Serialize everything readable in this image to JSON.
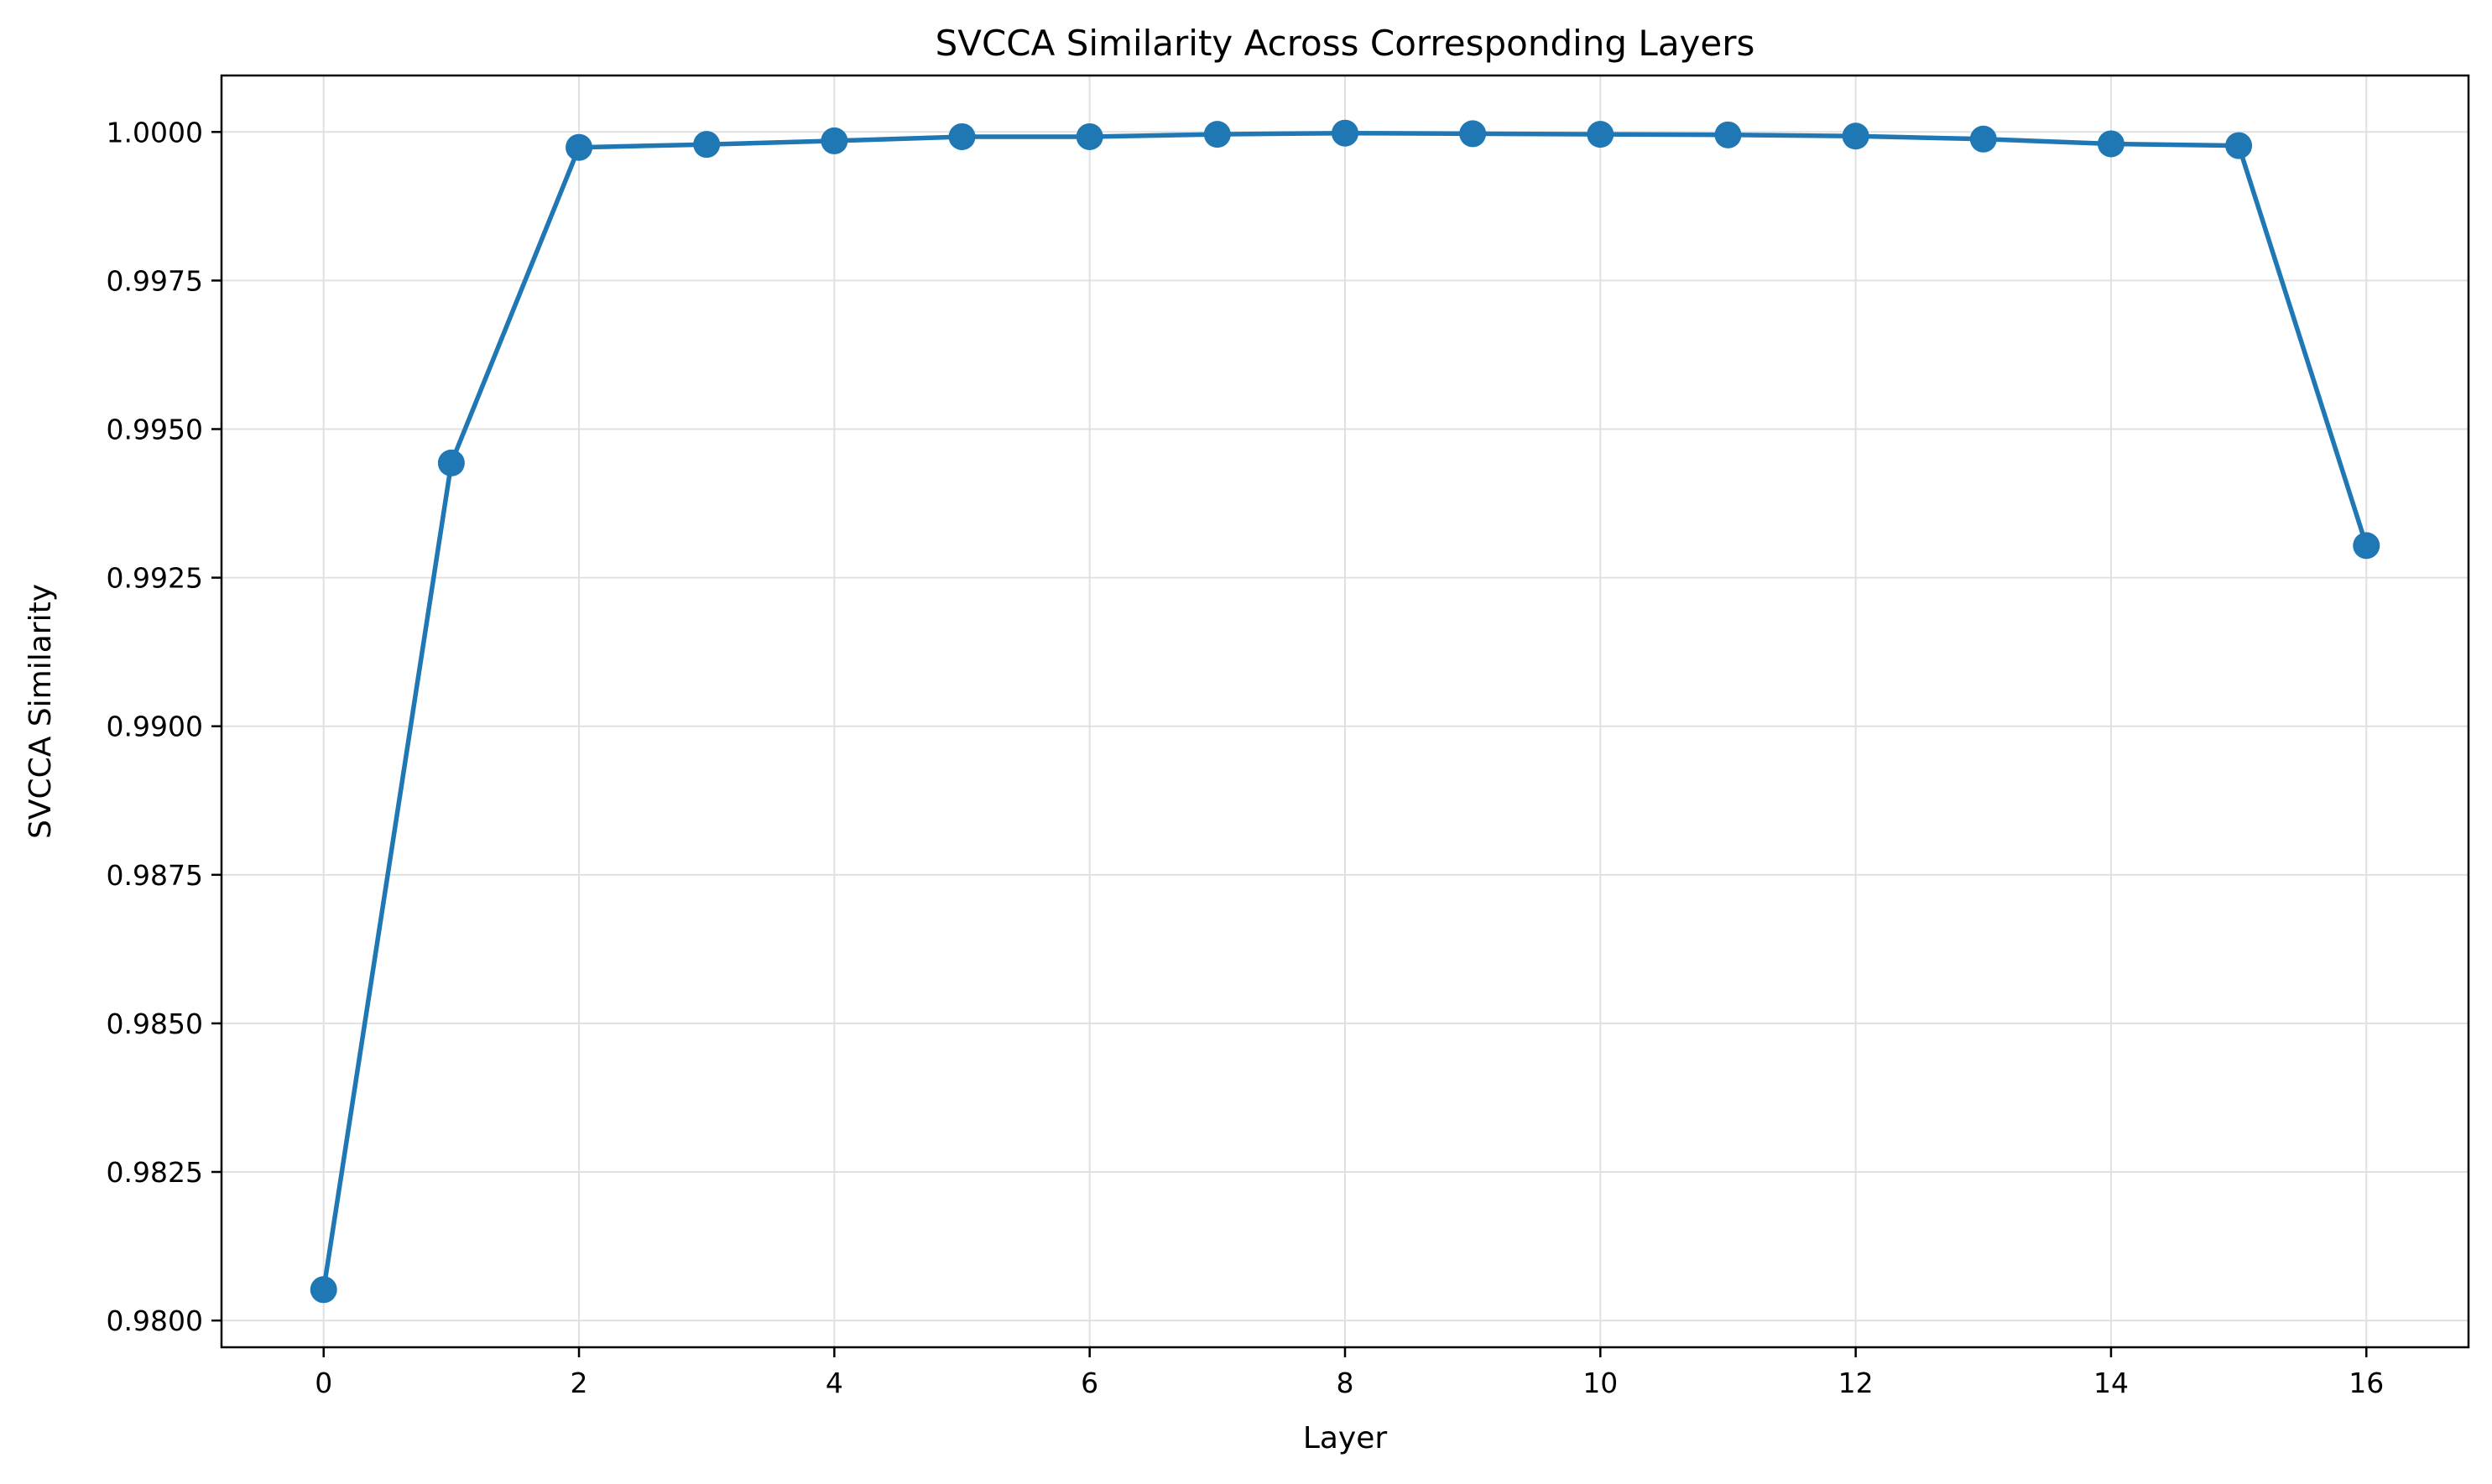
{
  "chart_data": {
    "type": "line",
    "title": "SVCCA Similarity Across Corresponding Layers",
    "xlabel": "Layer",
    "ylabel": "SVCCA Similarity",
    "xlim": [
      -0.8,
      16.8
    ],
    "ylim": [
      0.97955,
      1.00095
    ],
    "xticks": [
      0,
      2,
      4,
      6,
      8,
      10,
      12,
      14,
      16
    ],
    "yticks": [
      0.98,
      0.9825,
      0.985,
      0.9875,
      0.99,
      0.9925,
      0.995,
      0.9975,
      1.0
    ],
    "ytick_labels": [
      "0.9800",
      "0.9825",
      "0.9850",
      "0.9875",
      "0.9900",
      "0.9925",
      "0.9950",
      "0.9975",
      "1.0000"
    ],
    "grid": true,
    "legend": "none",
    "colors": {
      "series": "#1f77b4",
      "grid": "#e0e0e0",
      "axes": "#000000"
    },
    "series": [
      {
        "x": [
          0,
          1,
          2,
          3,
          4,
          5,
          6,
          7,
          8,
          9,
          10,
          11,
          12,
          13,
          14,
          15,
          16
        ],
        "y": [
          0.98052,
          0.99443,
          0.99974,
          0.99979,
          0.99985,
          0.99992,
          0.99992,
          0.99996,
          0.99998,
          0.99997,
          0.99996,
          0.99995,
          0.99993,
          0.99988,
          0.9998,
          0.99977,
          0.99304
        ],
        "marker": "circle"
      }
    ]
  }
}
